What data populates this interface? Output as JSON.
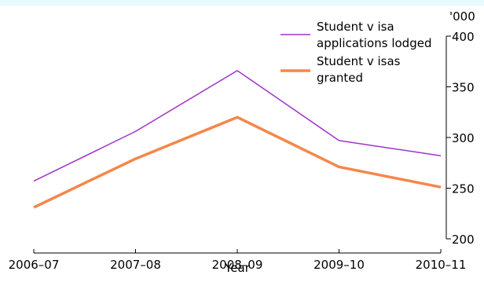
{
  "chart_data": {
    "type": "line",
    "categories": [
      "2006–07",
      "2007–08",
      "2008–09",
      "2009–10",
      "2010–11"
    ],
    "series": [
      {
        "name": "Student visa applications lodged",
        "name_lines": [
          "Student v isa",
          "applications lodged"
        ],
        "values": [
          257,
          306,
          366,
          297,
          282
        ],
        "color": "#a033c8"
      },
      {
        "name": "Student visas granted",
        "name_lines": [
          "Student v isas",
          "granted"
        ],
        "values": [
          231,
          279,
          320,
          271,
          251
        ],
        "color": "#f4874b"
      }
    ],
    "xlabel": "Year",
    "ylabel": "'000",
    "ylim": [
      200,
      400
    ],
    "yticks": [
      200,
      250,
      300,
      350,
      400
    ],
    "y_axis_side": "right",
    "legend_position": "top-right",
    "grid": false,
    "colors": {
      "top_band": "#e6fbfd",
      "axis": "#000000"
    }
  }
}
